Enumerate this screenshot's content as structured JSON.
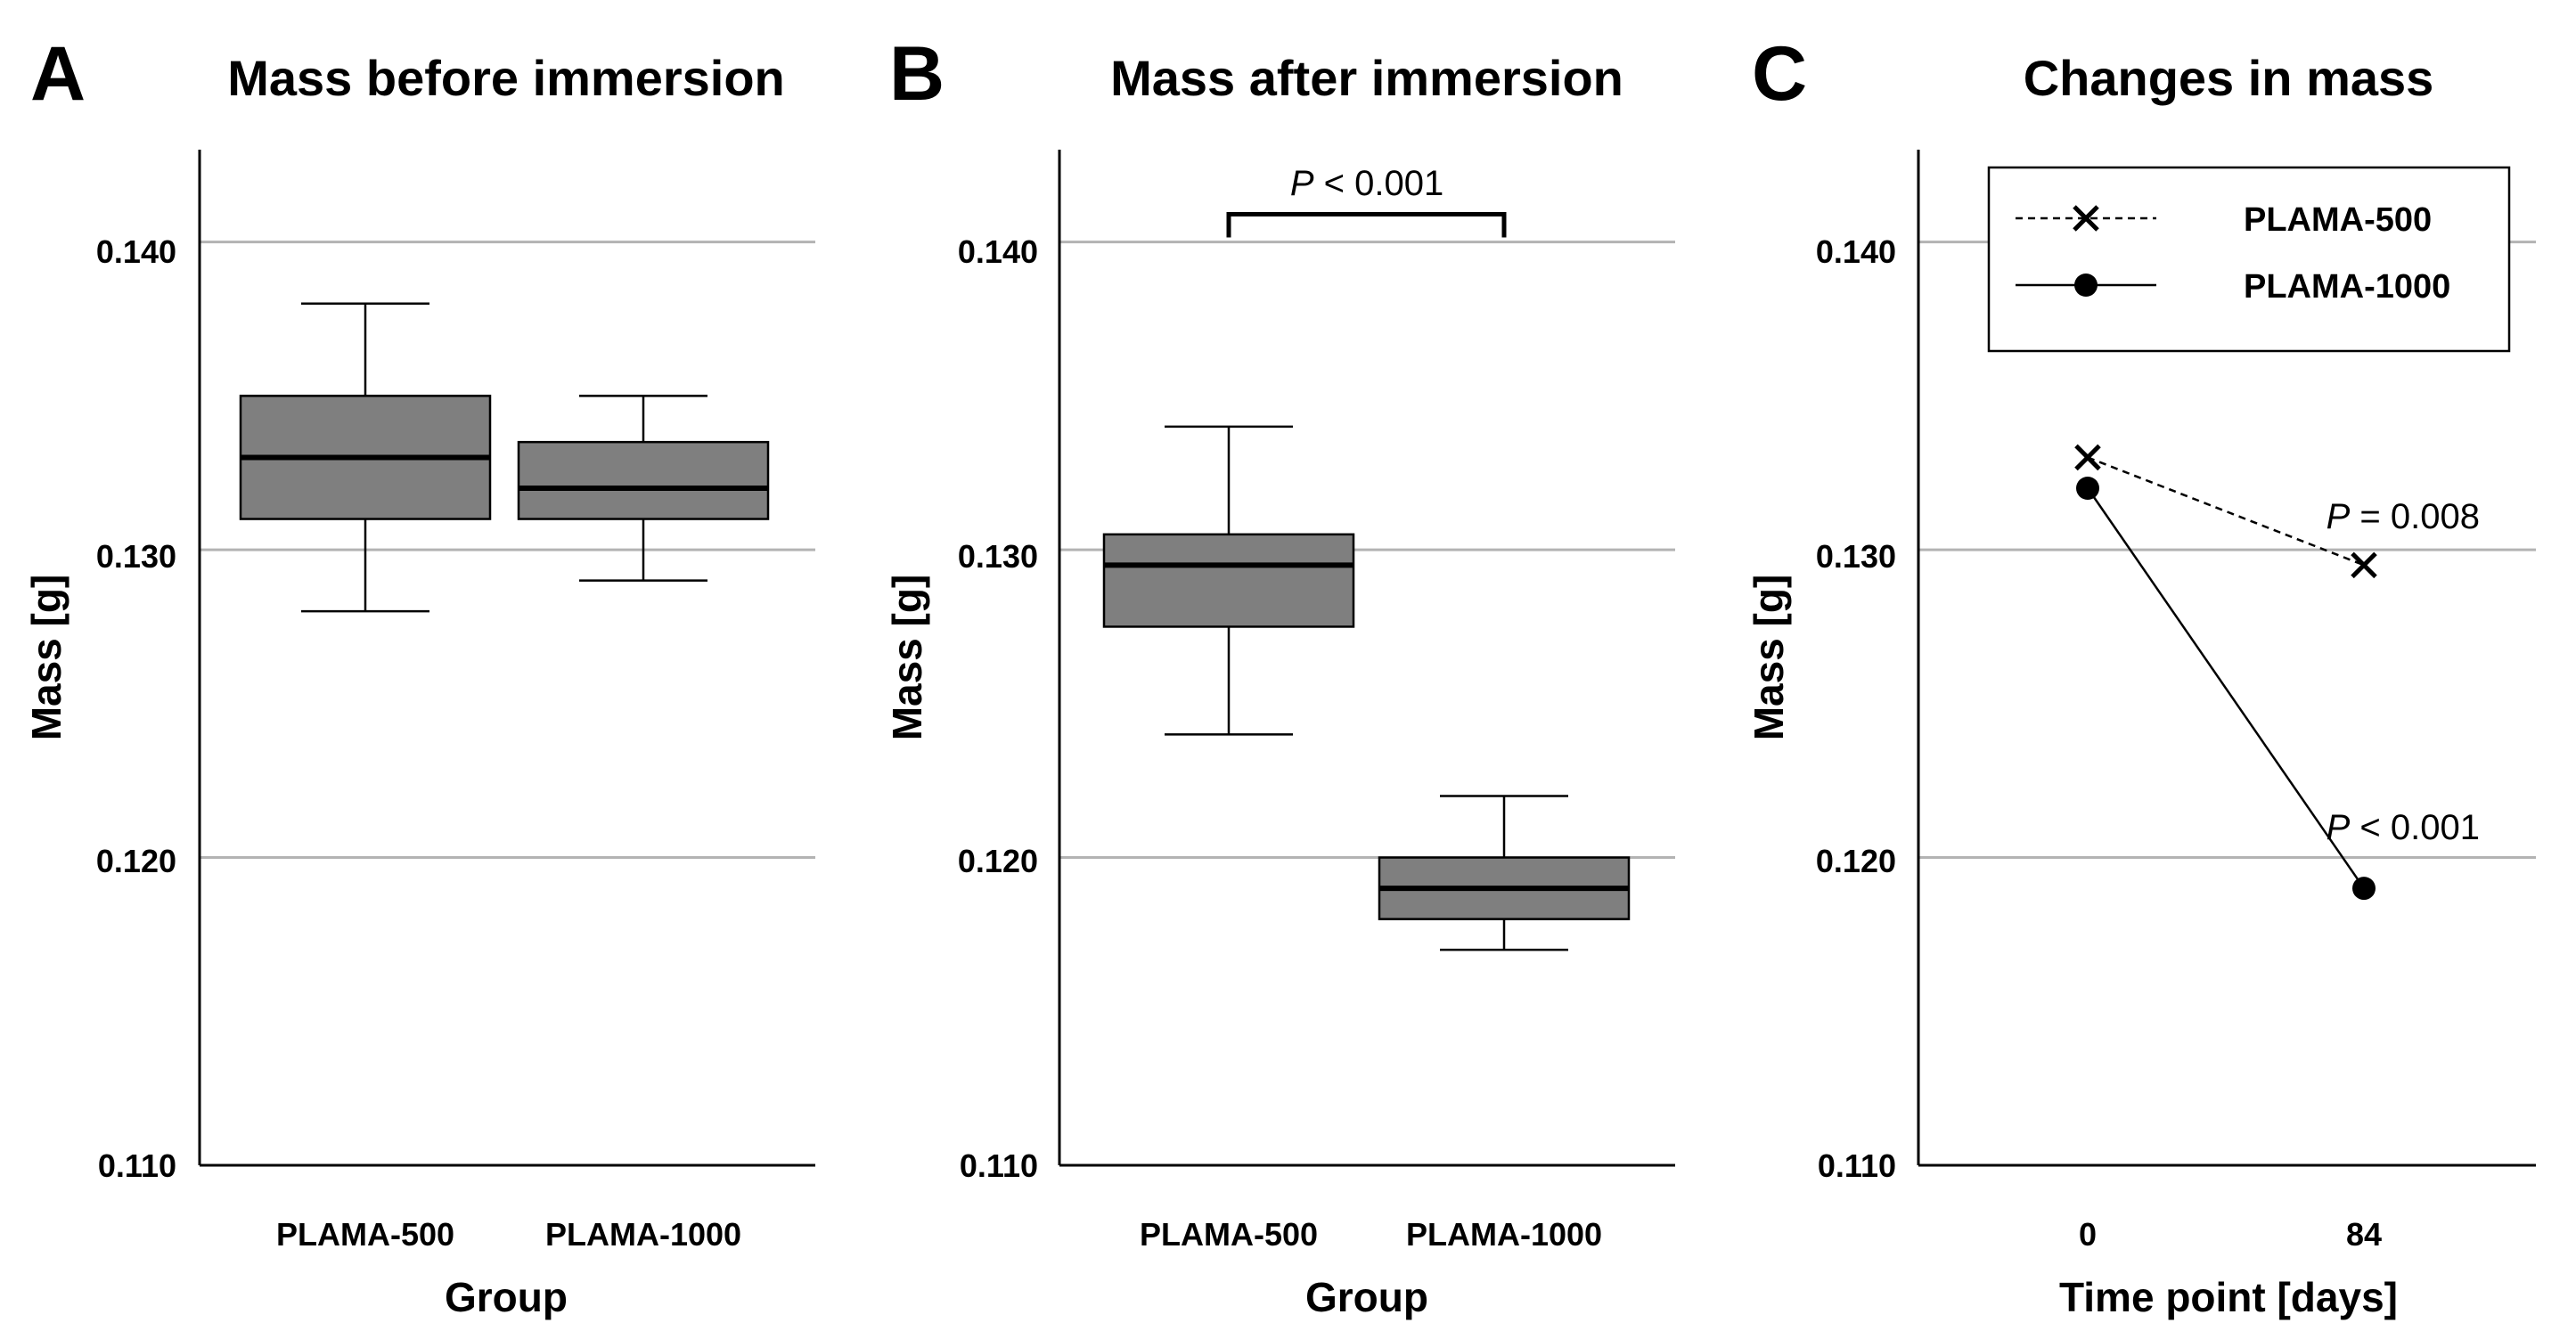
{
  "chart_data": [
    {
      "type": "box",
      "panel_label": "A",
      "title": "Mass before immersion",
      "xlabel": "Group",
      "ylabel": "Mass [g]",
      "ylim": [
        0.11,
        0.143
      ],
      "yticks": [
        "0.110",
        "0.120",
        "0.130",
        "0.140"
      ],
      "grid": true,
      "box_color": "#7f7f7f",
      "categories": [
        "PLAMA-500",
        "PLAMA-1000"
      ],
      "boxes": [
        {
          "min": 0.128,
          "q1": 0.131,
          "median": 0.133,
          "q3": 0.135,
          "max": 0.138
        },
        {
          "min": 0.129,
          "q1": 0.131,
          "median": 0.132,
          "q3": 0.1335,
          "max": 0.135
        }
      ]
    },
    {
      "type": "box",
      "panel_label": "B",
      "title": "Mass after immersion",
      "xlabel": "Group",
      "ylabel": "Mass [g]",
      "ylim": [
        0.11,
        0.143
      ],
      "yticks": [
        "0.110",
        "0.120",
        "0.130",
        "0.140"
      ],
      "grid": true,
      "box_color": "#7f7f7f",
      "categories": [
        "PLAMA-500",
        "PLAMA-1000"
      ],
      "boxes": [
        {
          "min": 0.124,
          "q1": 0.1275,
          "median": 0.1295,
          "q3": 0.1305,
          "max": 0.134
        },
        {
          "min": 0.117,
          "q1": 0.118,
          "median": 0.119,
          "q3": 0.12,
          "max": 0.122
        }
      ],
      "annotation": {
        "p_symbol": "P",
        "rest": " < 0.001",
        "y": 0.1409
      }
    },
    {
      "type": "line",
      "panel_label": "C",
      "title": "Changes in mass",
      "xlabel": "Time point [days]",
      "ylabel": "Mass [g]",
      "ylim": [
        0.11,
        0.143
      ],
      "yticks": [
        "0.110",
        "0.120",
        "0.130",
        "0.140"
      ],
      "grid": true,
      "x": [
        "0",
        "84"
      ],
      "legend_position": "top-right",
      "series": [
        {
          "name": "PLAMA-500",
          "marker": "x",
          "line": "dashed",
          "values": [
            0.133,
            0.1295
          ],
          "annotation": {
            "p_symbol": "P",
            "rest": " = 0.008",
            "y": 0.1311
          }
        },
        {
          "name": "PLAMA-1000",
          "marker": "circle",
          "line": "solid",
          "values": [
            0.132,
            0.119
          ],
          "annotation": {
            "p_symbol": "P",
            "rest": " < 0.001",
            "y": 0.121
          }
        }
      ]
    }
  ]
}
